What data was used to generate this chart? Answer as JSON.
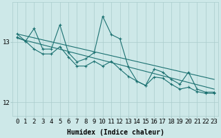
{
  "xlabel": "Humidex (Indice chaleur)",
  "x": [
    0,
    1,
    2,
    3,
    4,
    5,
    6,
    7,
    8,
    9,
    10,
    11,
    12,
    13,
    14,
    15,
    16,
    17,
    18,
    19,
    20,
    21,
    22,
    23
  ],
  "line_spiky": [
    13.13,
    13.01,
    13.22,
    12.88,
    12.88,
    13.28,
    12.82,
    12.67,
    12.72,
    12.82,
    13.42,
    13.12,
    13.05,
    12.58,
    12.35,
    12.28,
    12.55,
    12.5,
    12.38,
    12.3,
    12.5,
    12.22,
    12.17,
    12.17
  ],
  "line_smooth": [
    13.08,
    13.01,
    12.88,
    12.8,
    12.8,
    12.92,
    12.75,
    12.6,
    12.6,
    12.68,
    12.6,
    12.68,
    12.55,
    12.43,
    12.35,
    12.28,
    12.42,
    12.4,
    12.3,
    12.22,
    12.25,
    12.18,
    12.15,
    12.15
  ],
  "trend1": [
    13.13,
    12.38
  ],
  "trend2": [
    13.06,
    12.22
  ],
  "background_color": "#cde8e8",
  "grid_color": "#aacccc",
  "line_color": "#1a7070",
  "marker": "+",
  "ylim": [
    11.78,
    13.65
  ],
  "yticks": [
    12,
    13
  ],
  "xticks": [
    0,
    1,
    2,
    3,
    4,
    5,
    6,
    7,
    8,
    9,
    10,
    11,
    12,
    13,
    14,
    15,
    16,
    17,
    18,
    19,
    20,
    21,
    22,
    23
  ],
  "xlabel_fontsize": 7,
  "tick_fontsize": 6.5
}
